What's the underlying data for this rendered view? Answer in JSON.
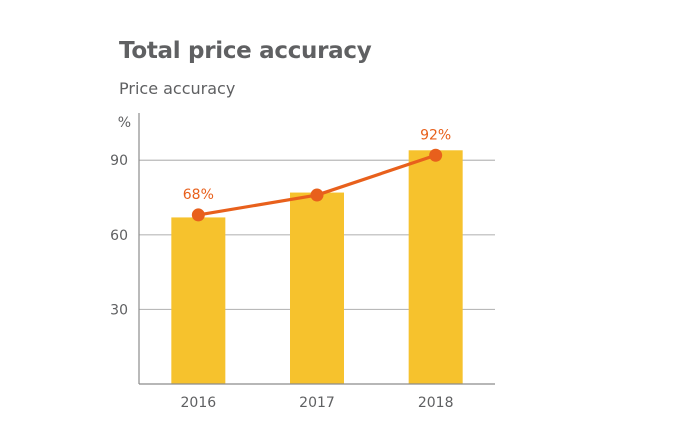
{
  "chart_data": {
    "type": "bar",
    "title": "Total price accuracy",
    "subtitle": "Price accuracy",
    "unit_label": "%",
    "categories": [
      "2016",
      "2017",
      "2018"
    ],
    "series": [
      {
        "type": "bar",
        "values": [
          67,
          77,
          94
        ]
      },
      {
        "type": "line",
        "values": [
          68,
          76,
          92
        ]
      }
    ],
    "data_labels": [
      "68%",
      "",
      "92%"
    ],
    "yticks": [
      30,
      60,
      90
    ],
    "ylim": [
      0,
      109
    ],
    "grid": true,
    "colors": {
      "bar": "#f6c22d",
      "line": "#e8601c",
      "grid": "#b9b9b9",
      "axis": "#8c8c8c",
      "text": "#5f6062"
    }
  }
}
